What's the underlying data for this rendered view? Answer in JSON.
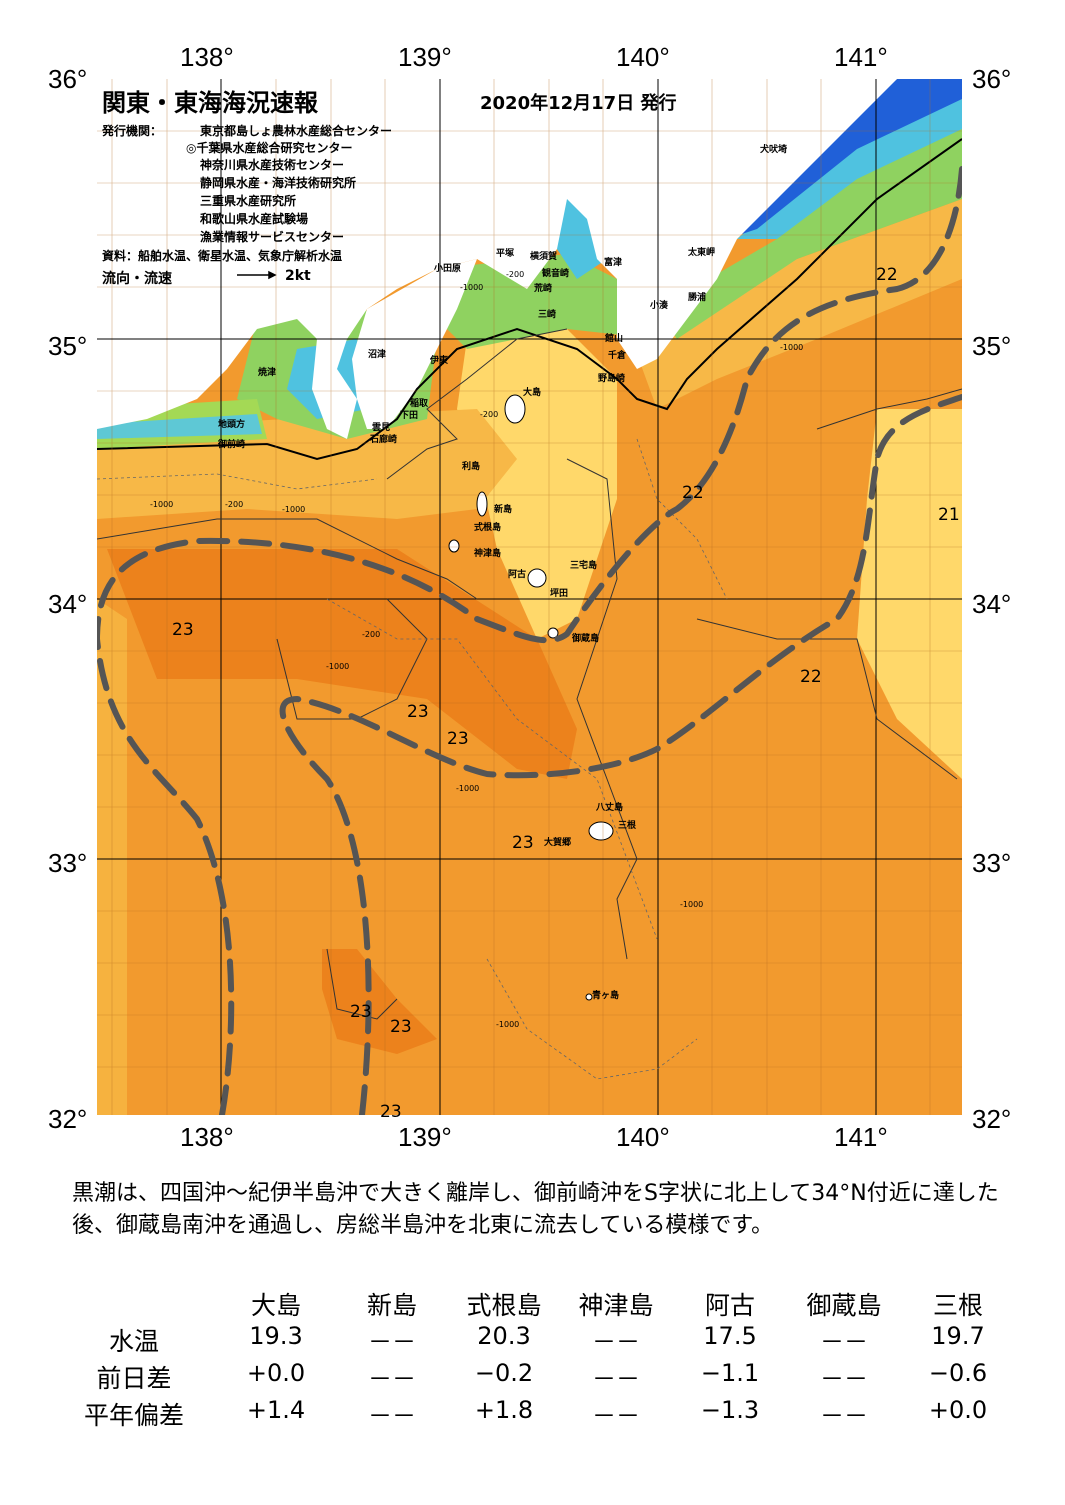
{
  "header": {
    "title": "関東・東海海況速報",
    "date": "2020年12月17日 発行",
    "issuer_label": "発行機関：",
    "issuers": [
      "東京都島しょ農林水産総合センター",
      "◎千葉県水産総合研究センター",
      "神奈川県水産技術センター",
      "静岡県水産・海洋技術研究所",
      "三重県水産研究所",
      "和歌山県水産試験場",
      "漁業情報サービスセンター"
    ],
    "source": "資料：船舶水温、衛星水温、気象庁解析水温",
    "flow_label": "流向・流速",
    "flow_scale": "2kt"
  },
  "axes": {
    "lon_labels": [
      "138°",
      "139°",
      "140°",
      "141°"
    ],
    "lat_labels": [
      "36°",
      "35°",
      "34°",
      "33°",
      "32°"
    ]
  },
  "colors": {
    "land": "#ffffff",
    "warm": "#f29a2e",
    "warmer": "#ec7f1a",
    "mid": "#ffd86a",
    "cool": "#4fc2e0",
    "kuroshio": "#555555"
  },
  "places": [
    "犬吠埼",
    "太東岬",
    "勝浦",
    "小湊",
    "富津",
    "観音崎",
    "横須賀",
    "平塚",
    "小田原",
    "荒崎",
    "三崎",
    "館山",
    "千倉",
    "野島崎",
    "沼津",
    "伊東",
    "焼津",
    "稲取",
    "下田",
    "雲見",
    "石廊崎",
    "地頭方",
    "御前崎",
    "大島",
    "利島",
    "新島",
    "式根島",
    "神津島",
    "三宅島",
    "阿古",
    "坪田",
    "御蔵島",
    "八丈島",
    "三根",
    "大賀郷",
    "青ヶ島"
  ],
  "temp_labels": [
    "22",
    "22",
    "21",
    "23",
    "22",
    "23",
    "23",
    "23",
    "23",
    "23",
    "23"
  ],
  "depth_labels": [
    "-200",
    "-1000",
    "-200",
    "-1000",
    "-1000",
    "-200",
    "-1000",
    "-200",
    "-1000",
    "-1000",
    "-1000",
    "-1000"
  ],
  "summary": "黒潮は、四国沖～紀伊半島沖で大きく離岸し、御前崎沖をS字状に北上して34°N付近に達した後、御蔵島南沖を通過し、房総半島沖を北東に流去している模様です。",
  "table": {
    "columns": [
      "大島",
      "新島",
      "式根島",
      "神津島",
      "阿古",
      "御蔵島",
      "三根"
    ],
    "rows": [
      {
        "label": "水温",
        "values": [
          "19.3",
          "－－",
          "20.3",
          "－－",
          "17.5",
          "－－",
          "19.7"
        ]
      },
      {
        "label": "前日差",
        "values": [
          "+0.0",
          "－－",
          "−0.2",
          "－－",
          "−1.1",
          "－－",
          "−0.6"
        ]
      },
      {
        "label": "平年偏差",
        "values": [
          "+1.4",
          "－－",
          "+1.8",
          "－－",
          "−1.3",
          "－－",
          "+0.0"
        ]
      }
    ]
  }
}
